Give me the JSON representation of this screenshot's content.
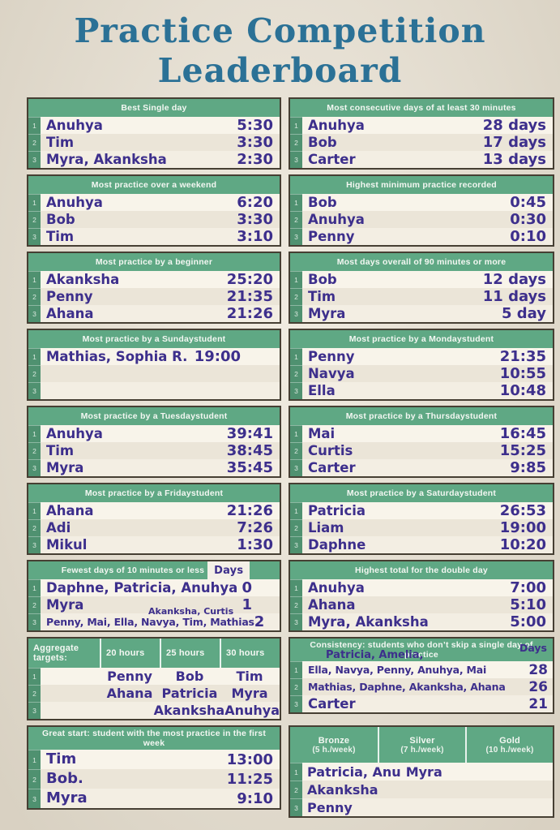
{
  "title": {
    "line1": "Practice Competition",
    "line2": "Leaderboard"
  },
  "colors": {
    "paper": "#e9e1d1",
    "card": "#f4f0e7",
    "green": "#5fa884",
    "rankgreen": "#4f9170",
    "ink": "#3d2f8c",
    "title": "#2b7196",
    "border": "#463f33"
  },
  "boards": [
    {
      "title": "Best Single day",
      "rows": [
        {
          "rank": "1",
          "name": "Anuhya",
          "value": "5:30"
        },
        {
          "rank": "2",
          "name": "Tim",
          "value": "3:30"
        },
        {
          "rank": "3",
          "name": "Myra, Akanksha",
          "value": "2:30"
        }
      ]
    },
    {
      "title": "Most consecutive days of at least 30 minutes",
      "rows": [
        {
          "rank": "1",
          "name": "Anuhya",
          "value": "28 days"
        },
        {
          "rank": "2",
          "name": "Bob",
          "value": "17 days"
        },
        {
          "rank": "3",
          "name": "Carter",
          "value": "13 days"
        }
      ]
    },
    {
      "title": "Most practice over a weekend",
      "rows": [
        {
          "rank": "1",
          "name": "Anuhya",
          "value": "6:20"
        },
        {
          "rank": "2",
          "name": "Bob",
          "value": "3:30"
        },
        {
          "rank": "3",
          "name": "Tim",
          "value": "3:10"
        }
      ]
    },
    {
      "title": "Highest minimum practice recorded",
      "rows": [
        {
          "rank": "1",
          "name": "Bob",
          "value": "0:45"
        },
        {
          "rank": "2",
          "name": "Anuhya",
          "value": "0:30"
        },
        {
          "rank": "3",
          "name": "Penny",
          "value": "0:10"
        }
      ]
    },
    {
      "title": "Most practice by a beginner",
      "rows": [
        {
          "rank": "1",
          "name": "Akanksha",
          "value": "25:20"
        },
        {
          "rank": "2",
          "name": "Penny",
          "value": "21:35"
        },
        {
          "rank": "3",
          "name": "Ahana",
          "value": "21:26"
        }
      ]
    },
    {
      "title": "Most days overall of 90 minutes or more",
      "rows": [
        {
          "rank": "1",
          "name": "Bob",
          "value": "12 days"
        },
        {
          "rank": "2",
          "name": "Tim",
          "value": "11 days"
        },
        {
          "rank": "3",
          "name": "Myra",
          "value": "5 day"
        }
      ]
    },
    {
      "title": "Most practice by a Sundaystudent",
      "rows": [
        {
          "rank": "1",
          "name": "Mathias, Sophia R.",
          "value": "19:00"
        },
        {
          "rank": "2",
          "name": "",
          "value": ""
        },
        {
          "rank": "3",
          "name": "",
          "value": ""
        }
      ]
    },
    {
      "title": "Most practice by a Mondaystudent",
      "rows": [
        {
          "rank": "1",
          "name": "Penny",
          "value": "21:35"
        },
        {
          "rank": "2",
          "name": "Navya",
          "value": "10:55"
        },
        {
          "rank": "3",
          "name": "Ella",
          "value": "10:48"
        }
      ]
    },
    {
      "title": "Most practice by a Tuesdaystudent",
      "rows": [
        {
          "rank": "1",
          "name": "Anuhya",
          "value": "39:41"
        },
        {
          "rank": "2",
          "name": "Tim",
          "value": "38:45"
        },
        {
          "rank": "3",
          "name": "Myra",
          "value": "35:45"
        }
      ]
    },
    {
      "title": "Most practice by a Thursdaystudent",
      "rows": [
        {
          "rank": "1",
          "name": "Mai",
          "value": "16:45"
        },
        {
          "rank": "2",
          "name": "Curtis",
          "value": "15:25"
        },
        {
          "rank": "3",
          "name": "Carter",
          "value": "9:85"
        }
      ]
    },
    {
      "title": "Most practice by a Fridaystudent",
      "rows": [
        {
          "rank": "1",
          "name": "Ahana",
          "value": "21:26"
        },
        {
          "rank": "2",
          "name": "Adi",
          "value": "7:26"
        },
        {
          "rank": "3",
          "name": "Mikul",
          "value": "1:30"
        }
      ]
    },
    {
      "title": "Most practice by a Saturdaystudent",
      "rows": [
        {
          "rank": "1",
          "name": "Patricia",
          "value": "26:53"
        },
        {
          "rank": "2",
          "name": "Liam",
          "value": "19:00"
        },
        {
          "rank": "3",
          "name": "Daphne",
          "value": "10:20"
        }
      ]
    },
    {
      "title": "Fewest days of 10 minutes or less",
      "days_label": "Days",
      "rows": [
        {
          "rank": "1",
          "name": "Daphne, Patricia, Anuhya",
          "value": "0"
        },
        {
          "rank": "2",
          "name": "Myra",
          "value": "1"
        },
        {
          "rank": "3",
          "name": "Penny, Mai, Ella, Navya, Tim, Mathias",
          "value": "2",
          "annotation": "Akanksha, Curtis"
        }
      ]
    },
    {
      "title": "Highest total for the double day",
      "rows": [
        {
          "rank": "1",
          "name": "Anuhya",
          "value": "7:00"
        },
        {
          "rank": "2",
          "name": "Ahana",
          "value": "5:10"
        },
        {
          "rank": "3",
          "name": "Myra, Akanksha",
          "value": "5:00"
        }
      ]
    },
    {
      "header_cols": [
        "Aggregate targets:",
        "20 hours",
        "25 hours",
        "30 hours"
      ],
      "rows": [
        {
          "rank": "1",
          "cells": [
            "Penny",
            "Bob",
            "Tim"
          ]
        },
        {
          "rank": "2",
          "cells": [
            "Ahana",
            "Patricia",
            "Myra"
          ]
        },
        {
          "rank": "3",
          "cells": [
            "",
            "Akanksha",
            "Anuhya"
          ]
        }
      ]
    },
    {
      "title": "Consistency: students who don’t skip a single day of practice",
      "days_label": "Days",
      "annotation": "Patricia, Amelia,",
      "rows": [
        {
          "rank": "1",
          "name": "Ella, Navya, Penny, Anuhya, Mai",
          "value": "28"
        },
        {
          "rank": "2",
          "name": "Mathias, Daphne, Akanksha, Ahana",
          "value": "26"
        },
        {
          "rank": "3",
          "name": "Carter",
          "value": "21"
        }
      ]
    },
    {
      "title": "Great start: student with the most practice in the first week",
      "rows": [
        {
          "rank": "1",
          "name": "Tim",
          "value": "13:00"
        },
        {
          "rank": "2",
          "name": "Bob.",
          "value": "11:25"
        },
        {
          "rank": "3",
          "name": "Myra",
          "value": "9:10"
        }
      ]
    },
    {
      "header_cols": [
        {
          "label": "Bronze",
          "sub": "(5 h./week)"
        },
        {
          "label": "Silver",
          "sub": "(7 h./week)"
        },
        {
          "label": "Gold",
          "sub": "(10 h./week)"
        }
      ],
      "rows": [
        {
          "rank": "1",
          "cells": [
            "Patricia, Anu",
            "Myra",
            ""
          ]
        },
        {
          "rank": "2",
          "cells": [
            "Akanksha",
            "",
            ""
          ]
        },
        {
          "rank": "3",
          "cells": [
            "Penny",
            "",
            ""
          ]
        }
      ]
    }
  ]
}
